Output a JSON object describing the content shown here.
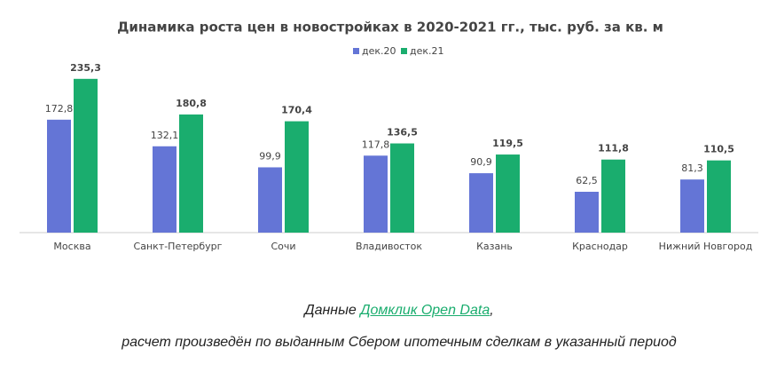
{
  "chart_data": {
    "type": "bar",
    "title": "Динамика роста цен в новостройках в 2020-2021 гг., тыс. руб. за кв. м",
    "categories": [
      "Москва",
      "Санкт-Петербург",
      "Сочи",
      "Владивосток",
      "Казань",
      "Краснодар",
      "Нижний Новгород"
    ],
    "series": [
      {
        "name": "дек.20",
        "color": "#6475d6",
        "values": [
          172.8,
          132.1,
          99.9,
          117.8,
          90.9,
          62.5,
          81.3
        ],
        "value_labels": [
          "172,8",
          "132,1",
          "99,9",
          "117,8",
          "90,9",
          "62,5",
          "81,3"
        ]
      },
      {
        "name": "дек.21",
        "color": "#1aad6e",
        "values": [
          235.3,
          180.8,
          170.4,
          136.5,
          119.5,
          111.8,
          110.5
        ],
        "value_labels": [
          "235,3",
          "180,8",
          "170,4",
          "136,5",
          "119,5",
          "111,8",
          "110,5"
        ]
      }
    ],
    "ylim": [
      0,
      250
    ],
    "legend": "top"
  },
  "caption": {
    "prefix": "Данные",
    "link": "Домклик Open Data",
    "suffix": ",",
    "line2": "расчет произведён по выданным Сбером ипотечным сделкам в указанный период"
  }
}
